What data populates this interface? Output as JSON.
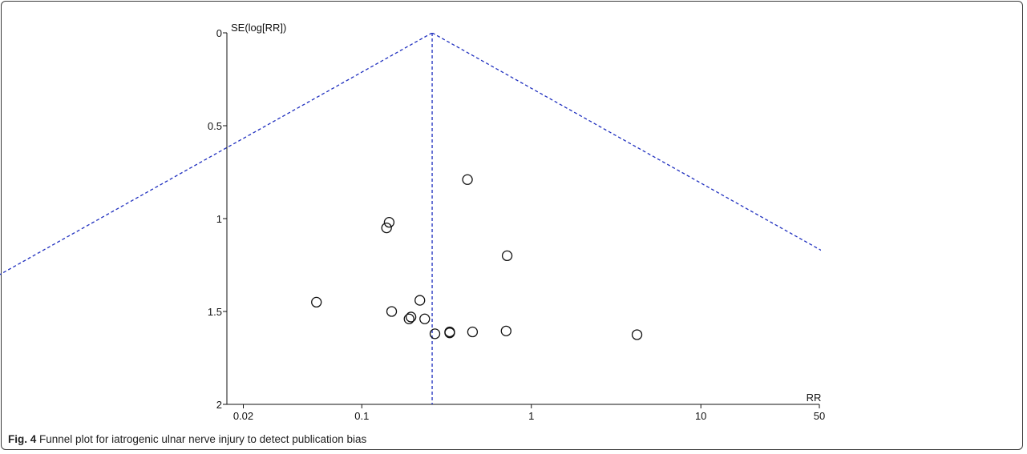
{
  "caption": {
    "label": "Fig. 4",
    "text": "Funnel plot for iatrogenic ulnar nerve injury to detect publication bias"
  },
  "colors": {
    "funnel": "#1f2fbf",
    "axis": "#111111",
    "marker": "#111111"
  },
  "chart_data": {
    "type": "scatter",
    "title": "",
    "xlabel": "RR",
    "ylabel": "SE(log[RR])",
    "x_scale": "log",
    "xlim": [
      0.016,
      50
    ],
    "ylim": [
      0,
      2
    ],
    "y_inverted": true,
    "x_ticks": [
      0.02,
      0.1,
      1,
      10,
      50
    ],
    "x_tick_labels": [
      "0.02",
      "0.1",
      "1",
      "10",
      "50"
    ],
    "y_ticks": [
      0,
      0.5,
      1,
      1.5,
      2
    ],
    "y_tick_labels": [
      "0",
      "0.5",
      "1",
      "1.5",
      "2"
    ],
    "pooled_estimate": 0.26,
    "funnel_lines": "95% pseudo-confidence limits (dashed)",
    "points": [
      {
        "x": 0.42,
        "y": 0.79
      },
      {
        "x": 0.145,
        "y": 1.02
      },
      {
        "x": 0.14,
        "y": 1.05
      },
      {
        "x": 0.72,
        "y": 1.2
      },
      {
        "x": 0.054,
        "y": 1.45
      },
      {
        "x": 0.22,
        "y": 1.44
      },
      {
        "x": 0.15,
        "y": 1.5
      },
      {
        "x": 0.195,
        "y": 1.53
      },
      {
        "x": 0.19,
        "y": 1.54
      },
      {
        "x": 0.235,
        "y": 1.54
      },
      {
        "x": 0.71,
        "y": 1.605
      },
      {
        "x": 0.45,
        "y": 1.61
      },
      {
        "x": 0.33,
        "y": 1.61
      },
      {
        "x": 0.33,
        "y": 1.615
      },
      {
        "x": 0.27,
        "y": 1.62
      },
      {
        "x": 4.2,
        "y": 1.625
      }
    ]
  }
}
